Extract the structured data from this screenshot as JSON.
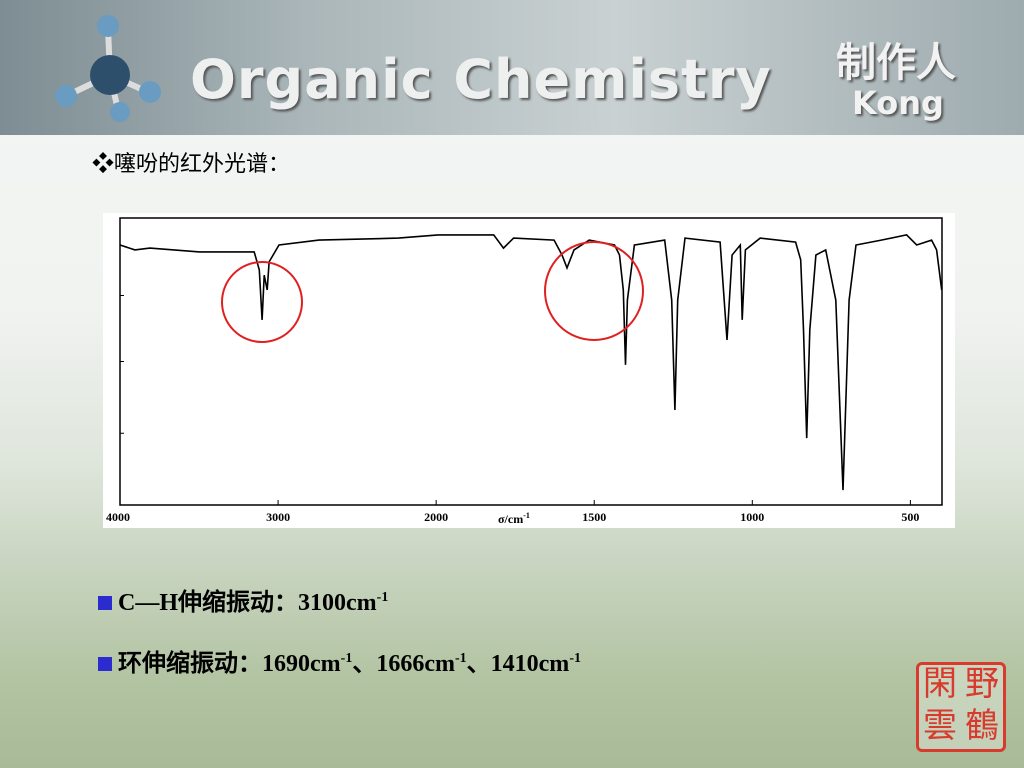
{
  "header": {
    "title": "Organic Chemistry",
    "author_label": "制作人",
    "author": "Kong"
  },
  "subtitle": "❖噻吩的红外光谱：",
  "chart_data": {
    "type": "line",
    "color": "#000000",
    "x_label": {
      "text": "σ/cm",
      "sup": "-1"
    },
    "xlim": [
      4000,
      400
    ],
    "x_scale_break": 2000,
    "ylim": [
      0,
      100
    ],
    "xticks": [
      4000,
      3000,
      2000,
      1500,
      1000,
      500
    ],
    "x": [
      4000,
      3906,
      3811,
      3497,
      3151,
      3119,
      3101,
      3088,
      3069,
      3057,
      2994,
      2742,
      2239,
      1994,
      1818,
      1787,
      1755,
      1627,
      1602,
      1586,
      1564,
      1516,
      1436,
      1420,
      1408,
      1401,
      1395,
      1373,
      1277,
      1255,
      1245,
      1236,
      1213,
      1102,
      1080,
      1064,
      1038,
      1032,
      1022,
      975,
      863,
      847,
      838,
      828,
      818,
      799,
      768,
      736,
      713,
      694,
      672,
      592,
      512,
      480,
      433,
      417,
      401
    ],
    "values": [
      90.6,
      88.9,
      89.5,
      88.2,
      88.2,
      81.9,
      64.5,
      80.1,
      74.9,
      84.7,
      90.6,
      92.3,
      93.0,
      94.1,
      94.1,
      89.5,
      93.0,
      92.3,
      87.1,
      82.6,
      88.9,
      92.3,
      90.6,
      87.1,
      74.9,
      48.8,
      71.4,
      90.6,
      92.3,
      71.4,
      33.1,
      71.4,
      93.0,
      91.6,
      57.5,
      87.1,
      90.6,
      64.5,
      88.9,
      93.0,
      91.6,
      85.4,
      61.0,
      23.3,
      61.0,
      87.1,
      88.9,
      71.4,
      5.2,
      71.4,
      90.6,
      92.3,
      94.1,
      90.6,
      92.3,
      88.9,
      74.9
    ]
  },
  "bullets": [
    {
      "parts": [
        {
          "text": "C—H伸缩振动：3100cm",
          "sup": "-1"
        }
      ]
    },
    {
      "parts": [
        {
          "text": "环伸缩振动：1690cm",
          "sup": "-1"
        },
        {
          "text": "、1666cm",
          "sup": "-1"
        },
        {
          "text": "、1410cm",
          "sup": "-1"
        }
      ]
    }
  ],
  "seal": [
    "閑",
    "野",
    "雲",
    "鶴"
  ]
}
